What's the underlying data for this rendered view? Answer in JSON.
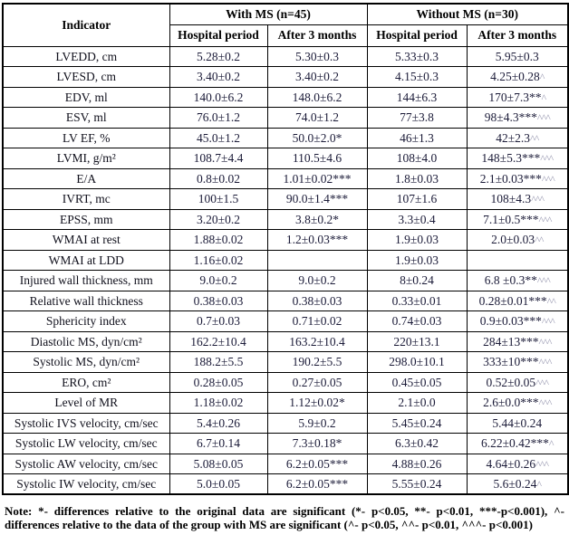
{
  "colors": {
    "border": "#000000",
    "label_text": "#10101c",
    "value_text": "#1b1b38",
    "caret_marker": "#9a9ab2"
  },
  "table": {
    "header": {
      "indicator_label": "Indicator",
      "groups": [
        {
          "label": "With MS (n=45)",
          "subcolumns": [
            "Hospital period",
            "After 3 months"
          ]
        },
        {
          "label": "Without MS (n=30)",
          "subcolumns": [
            "Hospital period",
            "After 3 months"
          ]
        }
      ]
    },
    "rows": [
      {
        "indicator": "LVEDD, cm",
        "values": [
          "5.28±0.2",
          "5.30±0.3",
          "5.33±0.3",
          "5.95±0.3"
        ]
      },
      {
        "indicator": "LVESD, cm",
        "values": [
          "3.40±0.2",
          "3.40±0.2",
          "4.15±0.3",
          "4.25±0.28^"
        ]
      },
      {
        "indicator": "EDV, ml",
        "values": [
          "140.0±6.2",
          "148.0±6.2",
          "144±6.3",
          "170±7.3**^"
        ]
      },
      {
        "indicator": "ESV, ml",
        "values": [
          "76.0±1.2",
          "74.0±1.2",
          "77±3.8",
          "98±4.3***^^^"
        ]
      },
      {
        "indicator": "LV EF, %",
        "values": [
          "45.0±1.2",
          "50.0±2.0*",
          "46±1.3",
          "42±2.3^^"
        ]
      },
      {
        "indicator": "LVMI, g/m²",
        "values": [
          "108.7±4.4",
          "110.5±4.6",
          "108±4.0",
          "148±5.3***^^^"
        ]
      },
      {
        "indicator": "E/A",
        "values": [
          "0.8±0.02",
          "1.01±0.02***",
          "1.8±0.03",
          "2.1±0.03***^^^"
        ]
      },
      {
        "indicator": "IVRT, mc",
        "values": [
          "100±1.5",
          "90.0±1.4***",
          "107±1.6",
          "108±4.3^^^"
        ]
      },
      {
        "indicator": "EPSS, mm",
        "values": [
          "3.20±0.2",
          "3.8±0.2*",
          "3.3±0.4",
          "7.1±0.5***^^^"
        ]
      },
      {
        "indicator": "WMAI at rest",
        "values": [
          "1.88±0.02",
          "1.2±0.03***",
          "1.9±0.03",
          "2.0±0.03^^"
        ]
      },
      {
        "indicator": "WMAI at LDD",
        "values": [
          "1.16±0.02",
          "",
          "1.9±0.03",
          ""
        ]
      },
      {
        "indicator": "Injured wall thickness, mm",
        "values": [
          "9.0±0.2",
          "9.0±0.2",
          "8±0.24",
          "6.8 ±0.3**^^^"
        ]
      },
      {
        "indicator": "Relative wall thickness",
        "values": [
          "0.38±0.03",
          "0.38±0.03",
          "0.33±0.01",
          "0.28±0.01***^^"
        ]
      },
      {
        "indicator": "Sphericity index",
        "values": [
          "0.7±0.03",
          "0.71±0.02",
          "0.74±0.03",
          "0.9±0.03***^^^"
        ]
      },
      {
        "indicator": "Diastolic MS, dyn/cm²",
        "values": [
          "162.2±10.4",
          "163.2±10.4",
          "220±13.1",
          "284±13***^^^"
        ]
      },
      {
        "indicator": "Systolic MS, dyn/cm²",
        "values": [
          "188.2±5.5",
          "190.2±5.5",
          "298.0±10.1",
          "333±10***^^^"
        ]
      },
      {
        "indicator": "ERO, cm²",
        "values": [
          "0.28±0.05",
          "0.27±0.05",
          "0.45±0.05",
          "0.52±0.05^^^"
        ]
      },
      {
        "indicator": "Level of MR",
        "values": [
          "1.18±0.02",
          "1.12±0.02*",
          "2.1±0.0",
          "2.6±0.0***^^^"
        ]
      },
      {
        "indicator": "Systolic IVS velocity, cm/sec",
        "values": [
          "5.4±0.26",
          "5.9±0.2",
          "5.45±0.24",
          "5.44±0.24"
        ]
      },
      {
        "indicator": "Systolic LW velocity, cm/sec",
        "values": [
          "6.7±0.14",
          "7.3±0.18*",
          "6.3±0.42",
          "6.22±0.42***^"
        ]
      },
      {
        "indicator": "Systolic AW velocity, cm/sec",
        "values": [
          "5.08±0.05",
          "6.2±0.05***",
          "4.88±0.26",
          "4.64±0.26^^^"
        ]
      },
      {
        "indicator": "Systolic IW velocity, cm/sec",
        "values": [
          "5.0±0.05",
          "6.2±0.05***",
          "5.55±0.24",
          "5.6±0.24^"
        ]
      }
    ]
  },
  "note": {
    "text": "Note: *- differences relative to the original data are significant (*- p<0.05, **- p<0.01, ***-p<0.001), ^-differences relative to the data of the group with MS are significant (^- p<0.05, ^^- p<0.01, ^^^- p<0.001)"
  }
}
